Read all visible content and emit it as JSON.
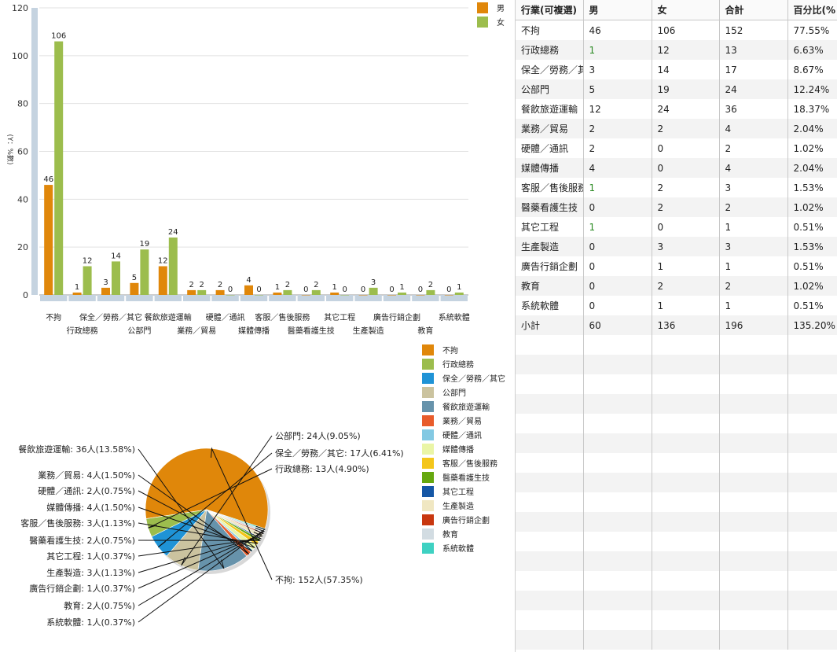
{
  "chart_data": [
    {
      "type": "bar",
      "ylabel": "(Y：%數)",
      "ylim": [
        0,
        120
      ],
      "yticks": [
        0,
        20,
        40,
        60,
        80,
        100,
        120
      ],
      "categories": [
        "不拘",
        "行政總務",
        "保全／勞務／其它",
        "公部門",
        "餐飲旅遊運輸",
        "業務／貿易",
        "硬體／通訊",
        "媒體傳播",
        "客服／售後服務",
        "醫藥看護生技",
        "其它工程",
        "生產製造",
        "廣告行銷企劃",
        "教育",
        "系統軟體"
      ],
      "series": [
        {
          "name": "男",
          "color": "#e0870a",
          "values": [
            46,
            1,
            3,
            5,
            12,
            2,
            2,
            4,
            1,
            0,
            1,
            0,
            0,
            0,
            0
          ]
        },
        {
          "name": "女",
          "color": "#9cbd4d",
          "values": [
            106,
            12,
            14,
            19,
            24,
            2,
            0,
            0,
            2,
            2,
            0,
            3,
            1,
            2,
            1
          ]
        }
      ],
      "legend": "top-right",
      "grid": true
    },
    {
      "type": "pie",
      "slices": [
        {
          "label": "不拘",
          "value": 152,
          "text": "不拘: 152人(57.35%)",
          "color": "#e0870a"
        },
        {
          "label": "行政總務",
          "value": 13,
          "text": "行政總務: 13人(4.90%)",
          "color": "#9cbd4d"
        },
        {
          "label": "保全／勞務／其它",
          "value": 17,
          "text": "保全／勞務／其它: 17人(6.41%)",
          "color": "#1f93d6"
        },
        {
          "label": "公部門",
          "value": 24,
          "text": "公部門: 24人(9.05%)",
          "color": "#cbc39f"
        },
        {
          "label": "餐飲旅遊運輸",
          "value": 36,
          "text": "餐飲旅遊運輸: 36人(13.58%)",
          "color": "#6793ab"
        },
        {
          "label": "業務／貿易",
          "value": 4,
          "text": "業務／貿易: 4人(1.50%)",
          "color": "#e85c2b"
        },
        {
          "label": "硬體／通訊",
          "value": 2,
          "text": "硬體／通訊: 2人(0.75%)",
          "color": "#83c9e3"
        },
        {
          "label": "媒體傳播",
          "value": 4,
          "text": "媒體傳播: 4人(1.50%)",
          "color": "#eaf5a6"
        },
        {
          "label": "客服／售後服務",
          "value": 3,
          "text": "客服／售後服務: 3人(1.13%)",
          "color": "#f4c61a"
        },
        {
          "label": "醫藥看護生技",
          "value": 2,
          "text": "醫藥看護生技: 2人(0.75%)",
          "color": "#66a80f"
        },
        {
          "label": "其它工程",
          "value": 1,
          "text": "其它工程: 1人(0.37%)",
          "color": "#1557a6"
        },
        {
          "label": "生產製造",
          "value": 3,
          "text": "生產製造: 3人(1.13%)",
          "color": "#f0e7c2"
        },
        {
          "label": "廣告行銷企劃",
          "value": 1,
          "text": "廣告行銷企劃: 1人(0.37%)",
          "color": "#c8370f"
        },
        {
          "label": "教育",
          "value": 2,
          "text": "教育: 2人(0.75%)",
          "color": "#d2dce2"
        },
        {
          "label": "系統軟體",
          "value": 1,
          "text": "系統軟體: 1人(0.37%)",
          "color": "#3ed1c2"
        }
      ],
      "legend": "right"
    }
  ],
  "table": {
    "headers": [
      "行業(可複選)",
      "男",
      "女",
      "合計",
      "百分比(%"
    ],
    "rows": [
      [
        "不拘",
        "46",
        "106",
        "152",
        "77.55%"
      ],
      [
        "行政總務",
        "1",
        "12",
        "13",
        "6.63%"
      ],
      [
        "保全／勞務／其它",
        "3",
        "14",
        "17",
        "8.67%"
      ],
      [
        "公部門",
        "5",
        "19",
        "24",
        "12.24%"
      ],
      [
        "餐飲旅遊運輸",
        "12",
        "24",
        "36",
        "18.37%"
      ],
      [
        "業務／貿易",
        "2",
        "2",
        "4",
        "2.04%"
      ],
      [
        "硬體／通訊",
        "2",
        "0",
        "2",
        "1.02%"
      ],
      [
        "媒體傳播",
        "4",
        "0",
        "4",
        "2.04%"
      ],
      [
        "客服／售後服務",
        "1",
        "2",
        "3",
        "1.53%"
      ],
      [
        "醫藥看護生技",
        "0",
        "2",
        "2",
        "1.02%"
      ],
      [
        "其它工程",
        "1",
        "0",
        "1",
        "0.51%"
      ],
      [
        "生產製造",
        "0",
        "3",
        "3",
        "1.53%"
      ],
      [
        "廣告行銷企劃",
        "0",
        "1",
        "1",
        "0.51%"
      ],
      [
        "教育",
        "0",
        "2",
        "2",
        "1.02%"
      ],
      [
        "系統軟體",
        "0",
        "1",
        "1",
        "0.51%"
      ],
      [
        "小計",
        "60",
        "136",
        "196",
        "135.20%"
      ]
    ],
    "link_color": "#2a8a22"
  }
}
